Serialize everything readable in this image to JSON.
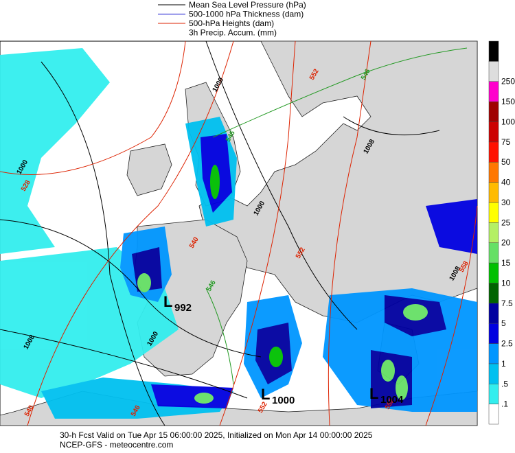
{
  "legend": [
    {
      "label": "Mean Sea Level Pressure (hPa)",
      "color": "#000000"
    },
    {
      "label": "500-1000 hPa Thickness (dam)",
      "color": "#0000cc"
    },
    {
      "label": "500-hPa Heights (dam)",
      "color": "#dd2200"
    },
    {
      "label": "3h Precip. Accum. (mm)",
      "color": null
    }
  ],
  "colorbar": {
    "labels": [
      ".1",
      ".5",
      "1",
      "2.5",
      "5",
      "7.5",
      "10",
      "15",
      "20",
      "25",
      "30",
      "40",
      "50",
      "75",
      "100",
      "150",
      "250"
    ],
    "colors": [
      "#ffffff",
      "#33eeee",
      "#00c0f0",
      "#0096ff",
      "#0000e0",
      "#0000a0",
      "#006400",
      "#00c000",
      "#66e066",
      "#b4f064",
      "#ffff00",
      "#ffbb00",
      "#ff7700",
      "#ff1100",
      "#cc0000",
      "#a00000",
      "#ff00cc",
      "#dddddd",
      "#000000"
    ]
  },
  "lows": [
    {
      "letter": "L",
      "value": "992"
    },
    {
      "letter": "L",
      "value": "1000"
    },
    {
      "letter": "L",
      "value": "1004"
    }
  ],
  "contour_labels": [
    "1000",
    "1008",
    "1000",
    "1008",
    "1008",
    "1000",
    "1000",
    "528",
    "540",
    "546",
    "546",
    "546",
    "552",
    "552",
    "552",
    "540",
    "546",
    "552",
    "558"
  ],
  "footer": [
    "30-h Fcst Valid on Tue Apr 15 06:00:00 2025, Initialized on Mon Apr 14 00:00:00 2025",
    "NCEP-GFS - meteocentre.com"
  ]
}
